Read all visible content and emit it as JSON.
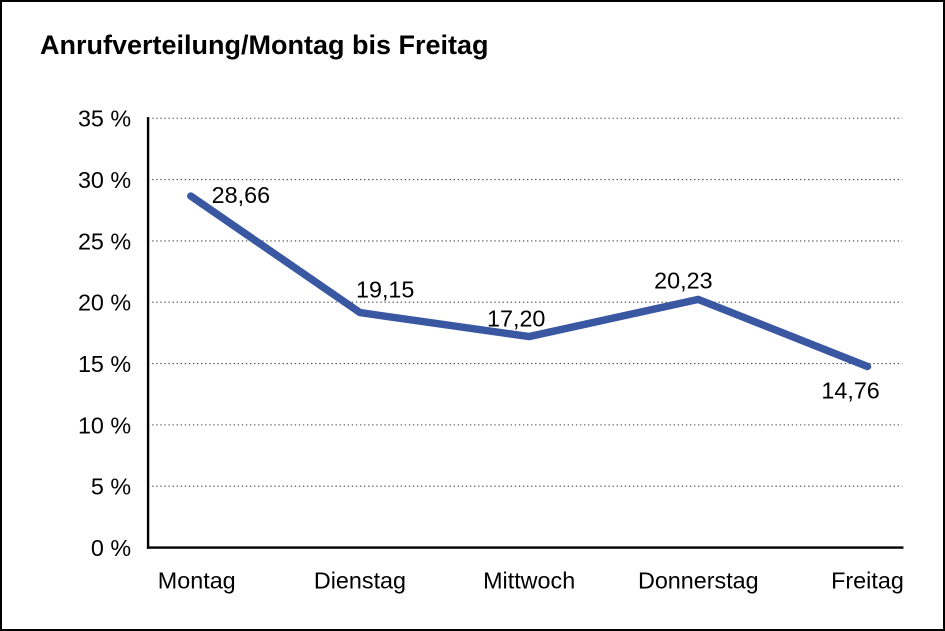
{
  "window": {
    "background_color": "#ffffff",
    "border_color": "#000000"
  },
  "chart": {
    "title": "Anrufverteilung/Montag bis Freitag"
  },
  "chart_data": {
    "type": "line",
    "title": "Anrufverteilung/Montag bis Freitag",
    "categories": [
      "Montag",
      "Dienstag",
      "Mittwoch",
      "Donnerstag",
      "Freitag"
    ],
    "values": [
      28.66,
      19.15,
      17.2,
      20.23,
      14.76
    ],
    "point_labels": [
      "28,66",
      "19,15",
      "17,20",
      "20,23",
      "14,76"
    ],
    "xlabel": "",
    "ylabel": "",
    "ylim": [
      0,
      35
    ],
    "ytick_step": 5,
    "ytick_labels": [
      "0 %",
      "5 %",
      "10 %",
      "15 %",
      "20 %",
      "25 %",
      "30 %",
      "35 %"
    ],
    "grid": "horizontal-dotted",
    "legend": "none",
    "line_color": "#3A57A2",
    "text_color": "#000000"
  }
}
